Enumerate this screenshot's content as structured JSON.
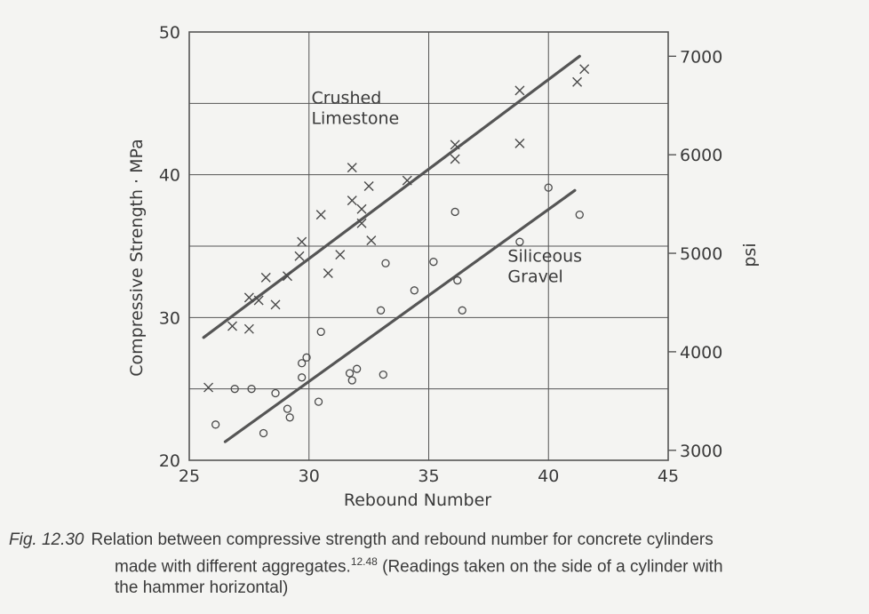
{
  "chart_data": {
    "type": "scatter",
    "title": "",
    "xlabel": "Rebound Number",
    "ylabel": "Compressive Strength · MPa",
    "ylabel_right": "psi",
    "xlim": [
      25,
      45
    ],
    "ylim": [
      20,
      50
    ],
    "x_ticks": [
      "25",
      "30",
      "35",
      "40",
      "45"
    ],
    "y_ticks": [
      "20",
      "30",
      "40",
      "50"
    ],
    "y2_ticks": [
      {
        "label": "3000",
        "mpa": 20.7
      },
      {
        "label": "4000",
        "mpa": 27.6
      },
      {
        "label": "5000",
        "mpa": 34.5
      },
      {
        "label": "6000",
        "mpa": 41.4
      },
      {
        "label": "7000",
        "mpa": 48.3
      }
    ],
    "grid": true,
    "series": [
      {
        "name": "Crushed Limestone",
        "marker": "x",
        "points": [
          [
            25.8,
            25.1
          ],
          [
            26.8,
            29.4
          ],
          [
            27.5,
            29.2
          ],
          [
            27.5,
            31.4
          ],
          [
            27.9,
            31.2
          ],
          [
            28.2,
            32.8
          ],
          [
            28.6,
            30.9
          ],
          [
            29.1,
            32.9
          ],
          [
            29.6,
            34.3
          ],
          [
            29.7,
            35.3
          ],
          [
            30.5,
            37.2
          ],
          [
            30.8,
            33.1
          ],
          [
            31.3,
            34.4
          ],
          [
            31.8,
            38.2
          ],
          [
            31.8,
            40.5
          ],
          [
            32.2,
            37.6
          ],
          [
            32.2,
            36.6
          ],
          [
            32.5,
            39.2
          ],
          [
            32.6,
            35.4
          ],
          [
            34.1,
            39.6
          ],
          [
            36.1,
            41.1
          ],
          [
            36.1,
            42.1
          ],
          [
            38.8,
            45.9
          ],
          [
            38.8,
            42.2
          ],
          [
            41.2,
            46.5
          ],
          [
            41.5,
            47.4
          ]
        ],
        "fit": [
          [
            25.6,
            28.6
          ],
          [
            41.3,
            48.3
          ]
        ]
      },
      {
        "name": "Siliceous Gravel",
        "marker": "o",
        "points": [
          [
            26.1,
            22.5
          ],
          [
            26.9,
            25.0
          ],
          [
            27.6,
            25.0
          ],
          [
            28.1,
            21.9
          ],
          [
            28.6,
            24.7
          ],
          [
            29.1,
            23.6
          ],
          [
            29.2,
            23.0
          ],
          [
            29.7,
            25.8
          ],
          [
            29.7,
            26.8
          ],
          [
            29.9,
            27.2
          ],
          [
            30.4,
            24.1
          ],
          [
            30.5,
            29.0
          ],
          [
            31.7,
            26.1
          ],
          [
            31.8,
            25.6
          ],
          [
            32.0,
            26.4
          ],
          [
            33.0,
            30.5
          ],
          [
            33.1,
            26.0
          ],
          [
            33.2,
            33.8
          ],
          [
            34.4,
            31.9
          ],
          [
            35.2,
            33.9
          ],
          [
            36.1,
            37.4
          ],
          [
            36.2,
            32.6
          ],
          [
            36.4,
            30.5
          ],
          [
            38.8,
            35.3
          ],
          [
            40.0,
            39.1
          ],
          [
            41.3,
            37.2
          ]
        ],
        "fit": [
          [
            26.5,
            21.3
          ],
          [
            41.1,
            38.9
          ]
        ]
      }
    ],
    "annotations": [
      {
        "lines": [
          "Crushed",
          "Limestone"
        ],
        "x": 30.1,
        "y": 45.0
      },
      {
        "lines": [
          "Siliceous",
          "Gravel"
        ],
        "x": 38.3,
        "y": 33.9
      }
    ],
    "colors": {
      "line": "#555555",
      "marker": "#4a4a4a",
      "grid": "#555555",
      "background": "#f4f4f2"
    }
  },
  "caption": {
    "fig": "Fig. 12.30",
    "line1": "Relation between compressive strength and rebound number for concrete cylinders",
    "line2": "made with different aggregates.",
    "ref": "12.48",
    "line2b": " (Readings taken on the side of a cylinder with",
    "line3": "the hammer horizontal)"
  }
}
